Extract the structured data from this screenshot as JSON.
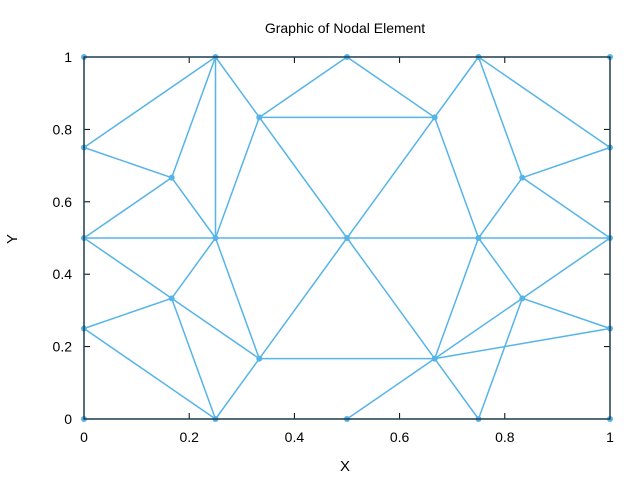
{
  "chart_data": {
    "type": "mesh",
    "title": "Graphic of Nodal Element",
    "xlabel": "X",
    "ylabel": "Y",
    "xlim": [
      0,
      1
    ],
    "ylim": [
      0,
      1
    ],
    "xticks": [
      "0",
      "0.2",
      "0.4",
      "0.6",
      "0.8",
      "1"
    ],
    "xtick_values": [
      0,
      0.2,
      0.4,
      0.6,
      0.8,
      1
    ],
    "yticks": [
      "0",
      "0.2",
      "0.4",
      "0.6",
      "0.8",
      "1"
    ],
    "ytick_values": [
      0,
      0.2,
      0.4,
      0.6,
      0.8,
      1
    ],
    "grid": false,
    "line_color": "#56b4e9",
    "nodes": [
      [
        0,
        0
      ],
      [
        0.25,
        0
      ],
      [
        0.5,
        0
      ],
      [
        0.75,
        0
      ],
      [
        1,
        0
      ],
      [
        0,
        0.25
      ],
      [
        0,
        0.5
      ],
      [
        0,
        0.75
      ],
      [
        0,
        1
      ],
      [
        0.25,
        1
      ],
      [
        0.5,
        1
      ],
      [
        0.75,
        1
      ],
      [
        1,
        1
      ],
      [
        1,
        0.25
      ],
      [
        1,
        0.5
      ],
      [
        1,
        0.75
      ],
      [
        0.1667,
        0.3333
      ],
      [
        0.1667,
        0.6667
      ],
      [
        0.25,
        0.5
      ],
      [
        0.5,
        0.5
      ],
      [
        0.75,
        0.5
      ],
      [
        0.3333,
        0.1667
      ],
      [
        0.6667,
        0.1667
      ],
      [
        0.3333,
        0.8333
      ],
      [
        0.6667,
        0.8333
      ],
      [
        0.8333,
        0.3333
      ],
      [
        0.8333,
        0.6667
      ]
    ],
    "edges": [
      [
        0,
        5
      ],
      [
        5,
        6
      ],
      [
        6,
        7
      ],
      [
        7,
        8
      ],
      [
        8,
        9
      ],
      [
        9,
        10
      ],
      [
        10,
        11
      ],
      [
        11,
        12
      ],
      [
        0,
        1
      ],
      [
        1,
        2
      ],
      [
        2,
        3
      ],
      [
        3,
        4
      ],
      [
        4,
        13
      ],
      [
        13,
        14
      ],
      [
        14,
        15
      ],
      [
        15,
        12
      ],
      [
        7,
        9
      ],
      [
        7,
        17
      ],
      [
        9,
        17
      ],
      [
        6,
        17
      ],
      [
        17,
        18
      ],
      [
        9,
        18
      ],
      [
        9,
        23
      ],
      [
        23,
        10
      ],
      [
        23,
        18
      ],
      [
        23,
        19
      ],
      [
        23,
        24
      ],
      [
        10,
        24
      ],
      [
        24,
        11
      ],
      [
        24,
        19
      ],
      [
        24,
        20
      ],
      [
        11,
        26
      ],
      [
        26,
        15
      ],
      [
        11,
        15
      ],
      [
        26,
        20
      ],
      [
        26,
        14
      ],
      [
        6,
        18
      ],
      [
        18,
        19
      ],
      [
        19,
        20
      ],
      [
        20,
        14
      ],
      [
        6,
        16
      ],
      [
        5,
        16
      ],
      [
        16,
        18
      ],
      [
        16,
        21
      ],
      [
        16,
        1
      ],
      [
        5,
        1
      ],
      [
        18,
        21
      ],
      [
        21,
        1
      ],
      [
        21,
        19
      ],
      [
        21,
        22
      ],
      [
        22,
        19
      ],
      [
        22,
        20
      ],
      [
        22,
        2
      ],
      [
        22,
        3
      ],
      [
        22,
        25
      ],
      [
        22,
        13
      ],
      [
        20,
        25
      ],
      [
        25,
        14
      ],
      [
        25,
        13
      ],
      [
        25,
        3
      ]
    ]
  }
}
